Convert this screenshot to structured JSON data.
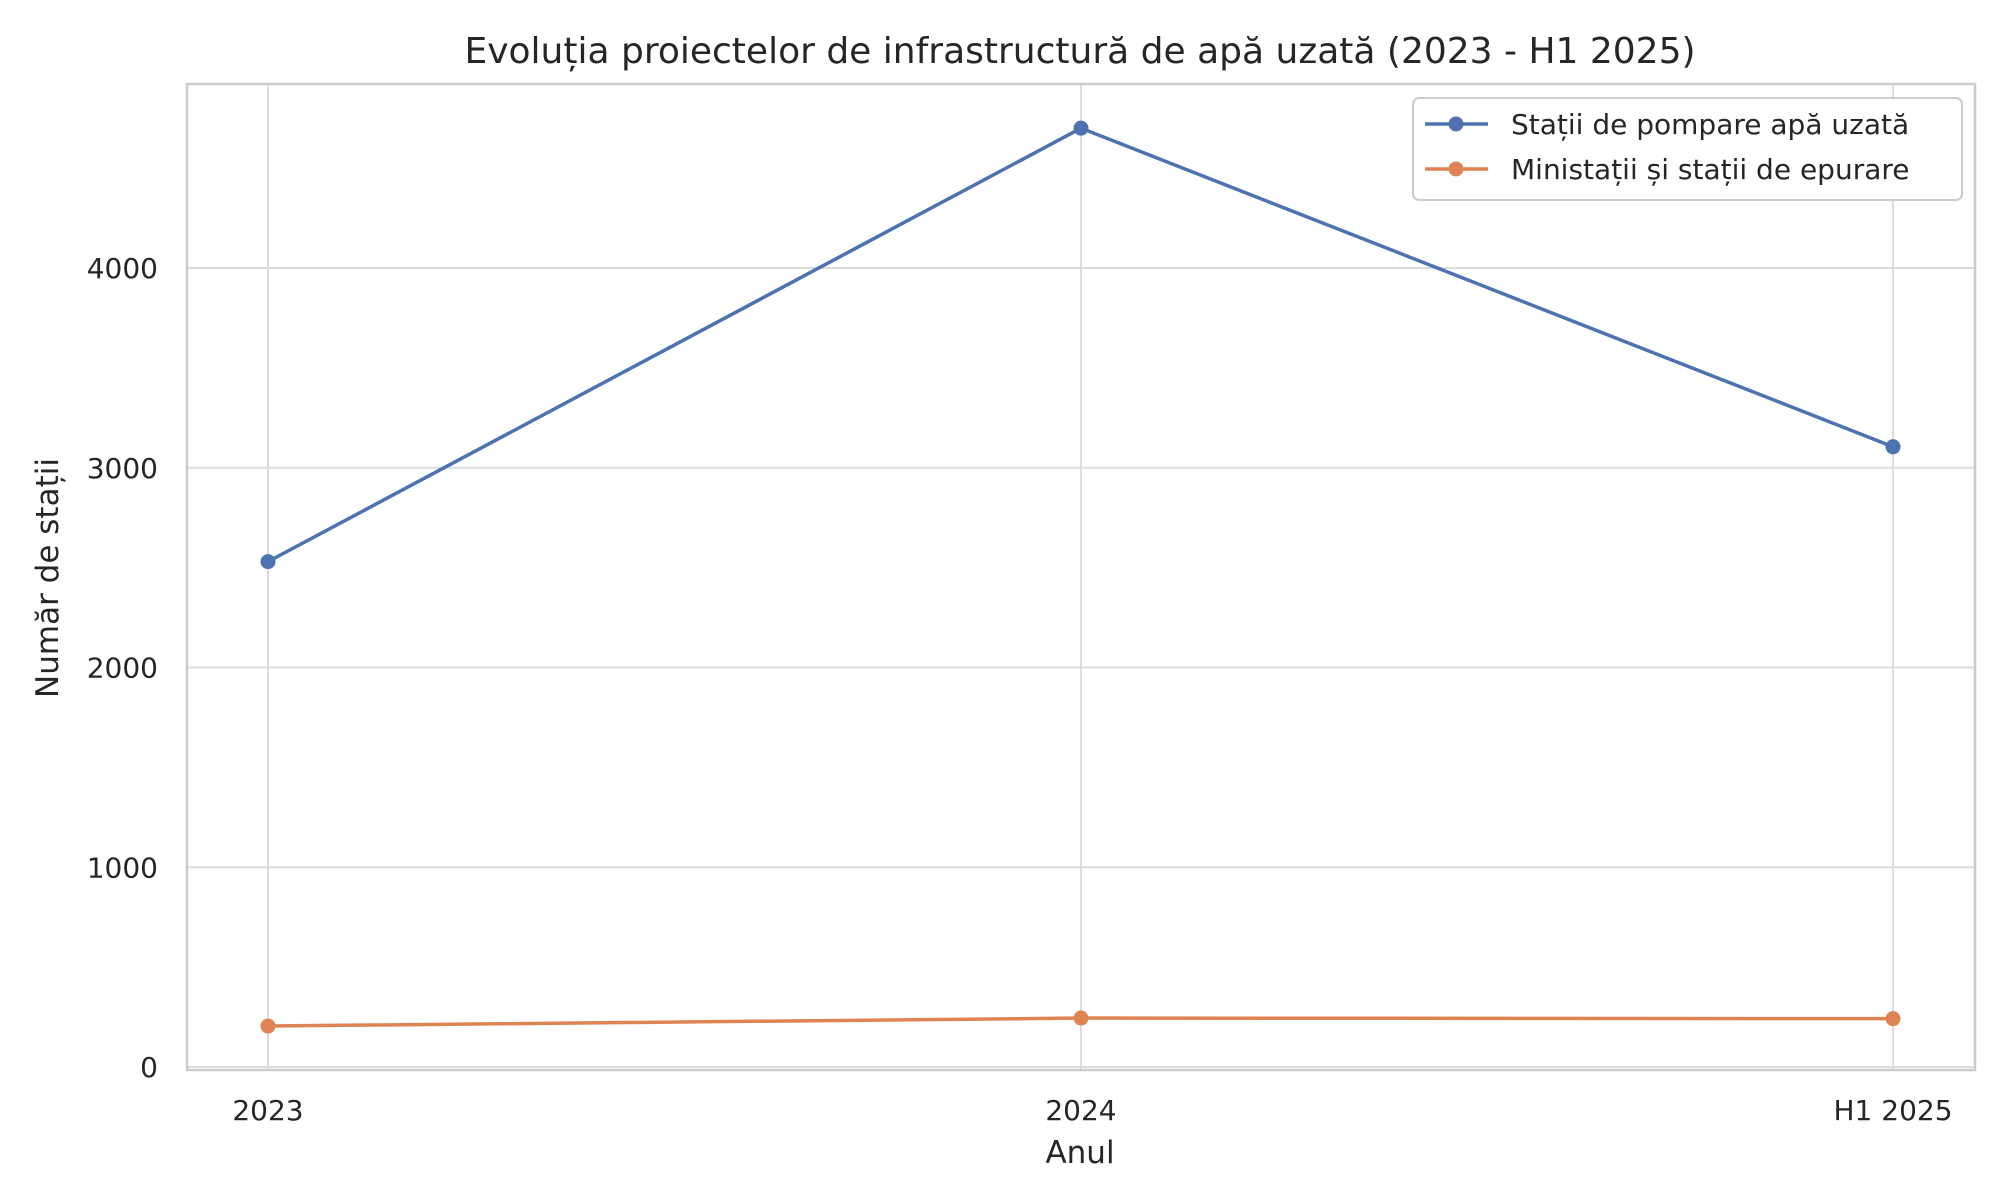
{
  "chart_data": {
    "type": "line",
    "title": "Evoluția proiectelor de infrastructură de apă uzată (2023 - H1 2025)",
    "xlabel": "Anul",
    "ylabel": "Număr de stații",
    "categories": [
      "2023",
      "2024",
      "H1 2025"
    ],
    "ylim": [
      0,
      4950
    ],
    "yticks": [
      0,
      1000,
      2000,
      3000,
      4000
    ],
    "grid": true,
    "legend_position": "top-right",
    "series": [
      {
        "name": "Stații de pompare apă uzată",
        "color": "#4c72b0",
        "values": [
          2530,
          4700,
          3105
        ]
      },
      {
        "name": "Ministații și stații de epurare",
        "color": "#dd8452",
        "values": [
          205,
          245,
          242
        ]
      }
    ]
  }
}
